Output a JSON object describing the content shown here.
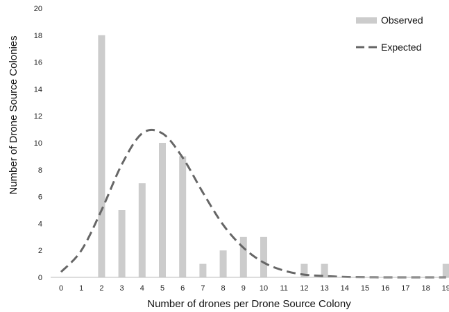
{
  "chart_data": {
    "type": "bar",
    "title": "",
    "xlabel": "Number of drones per Drone Source Colony",
    "ylabel": "Number of Drone Source Colonies",
    "categories": [
      "0",
      "1",
      "2",
      "3",
      "4",
      "5",
      "6",
      "7",
      "8",
      "9",
      "10",
      "11",
      "12",
      "13",
      "14",
      "15",
      "16",
      "17",
      "18",
      "19"
    ],
    "ylim": [
      0,
      20
    ],
    "yticks": [
      0,
      2,
      4,
      6,
      8,
      10,
      12,
      14,
      16,
      18,
      20
    ],
    "grid": false,
    "legend_position": "top-right",
    "series": [
      {
        "name": "Observed",
        "type": "bar",
        "color": "#cccccc",
        "values": [
          0,
          0,
          18,
          5,
          7,
          10,
          9,
          1,
          2,
          3,
          3,
          0,
          1,
          1,
          0,
          0,
          0,
          0,
          0,
          1
        ]
      },
      {
        "name": "Expected",
        "type": "line",
        "style": "dashed",
        "color": "#666666",
        "values": [
          0.4,
          2.0,
          5.0,
          8.4,
          10.7,
          10.7,
          8.9,
          6.3,
          3.9,
          2.2,
          1.1,
          0.5,
          0.2,
          0.1,
          0.03,
          0.01,
          0,
          0,
          0,
          0
        ]
      }
    ]
  }
}
